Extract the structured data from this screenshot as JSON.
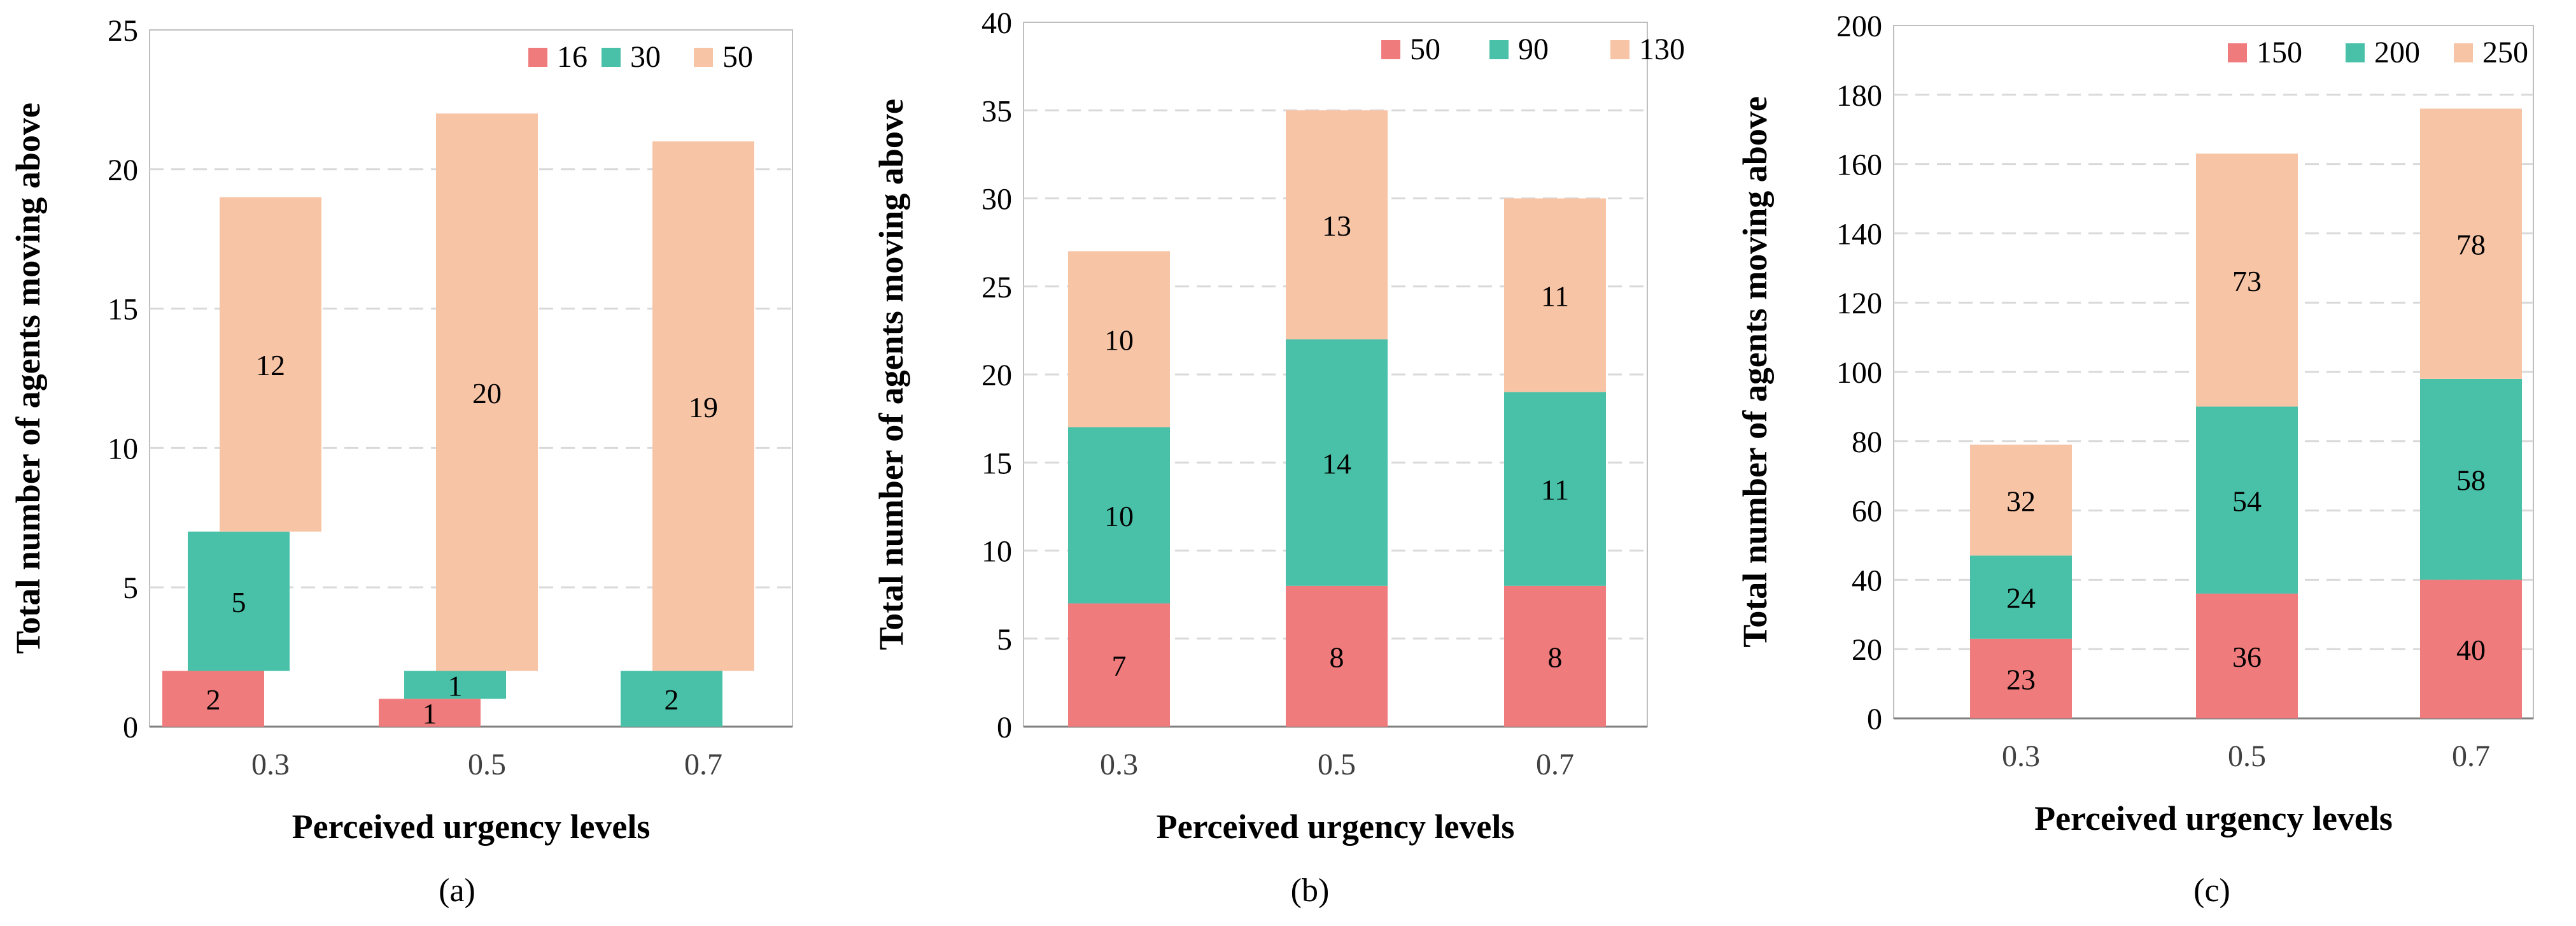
{
  "colors": {
    "red": "#f07b7c",
    "green": "#48c1a8",
    "peach": "#f7c4a6",
    "grid": "#d9d9d9",
    "axis": "#7f7f7f",
    "text": "#000000"
  },
  "chart_data": [
    {
      "type": "bar",
      "subtype": "floating-stacked",
      "panel_label": "(a)",
      "xlabel": "Perceived urgency levels",
      "ylabel": "Total number of agents moving above",
      "categories": [
        "0.3",
        "0.5",
        "0.7"
      ],
      "ylim": [
        0,
        25
      ],
      "yticks": [
        "0",
        "5",
        "10",
        "15",
        "20",
        "25"
      ],
      "legend_position": "top-right",
      "series": [
        {
          "name": "16",
          "color_key": "red",
          "bottoms": [
            0,
            0,
            0
          ],
          "values": [
            2,
            1,
            0
          ],
          "labels": [
            "2",
            "1",
            ""
          ]
        },
        {
          "name": "30",
          "color_key": "green",
          "bottoms": [
            2,
            1,
            0
          ],
          "values": [
            5,
            1,
            2
          ],
          "labels": [
            "5",
            "1",
            "2"
          ]
        },
        {
          "name": "50",
          "color_key": "peach",
          "bottoms": [
            7,
            2,
            2
          ],
          "values": [
            12,
            20,
            19
          ],
          "labels": [
            "12",
            "20",
            "19"
          ]
        }
      ]
    },
    {
      "type": "bar",
      "subtype": "floating-stacked",
      "panel_label": "(b)",
      "xlabel": "Perceived urgency levels",
      "ylabel": "Total number of agents moving above",
      "categories": [
        "0.3",
        "0.5",
        "0.7"
      ],
      "ylim": [
        0,
        40
      ],
      "yticks": [
        "0",
        "5",
        "10",
        "15",
        "20",
        "25",
        "30",
        "35",
        "40"
      ],
      "legend_position": "top-right",
      "series": [
        {
          "name": "50",
          "color_key": "red",
          "bottoms": [
            0,
            0,
            0
          ],
          "values": [
            7,
            8,
            8
          ],
          "labels": [
            "7",
            "8",
            "8"
          ]
        },
        {
          "name": "90",
          "color_key": "green",
          "bottoms": [
            7,
            8,
            8
          ],
          "values": [
            10,
            14,
            11
          ],
          "labels": [
            "10",
            "14",
            "11"
          ]
        },
        {
          "name": "130",
          "color_key": "peach",
          "bottoms": [
            17,
            22,
            19
          ],
          "values": [
            10,
            13,
            11
          ],
          "labels": [
            "10",
            "13",
            "11"
          ]
        }
      ]
    },
    {
      "type": "bar",
      "subtype": "floating-stacked",
      "panel_label": "(c)",
      "xlabel": "Perceived urgency levels",
      "ylabel": "Total number of agents moving above",
      "categories": [
        "0.3",
        "0.5",
        "0.7"
      ],
      "ylim": [
        0,
        200
      ],
      "yticks": [
        "0",
        "20",
        "40",
        "60",
        "80",
        "100",
        "120",
        "140",
        "160",
        "180",
        "200"
      ],
      "legend_position": "top-right",
      "series": [
        {
          "name": "150",
          "color_key": "red",
          "bottoms": [
            0,
            0,
            0
          ],
          "values": [
            23,
            36,
            40
          ],
          "labels": [
            "23",
            "36",
            "40"
          ]
        },
        {
          "name": "200",
          "color_key": "green",
          "bottoms": [
            23,
            36,
            40
          ],
          "values": [
            24,
            54,
            58
          ],
          "labels": [
            "24",
            "54",
            "58"
          ]
        },
        {
          "name": "250",
          "color_key": "peach",
          "bottoms": [
            47,
            90,
            98
          ],
          "values": [
            32,
            73,
            78
          ],
          "labels": [
            "32",
            "73",
            "78"
          ]
        }
      ]
    }
  ]
}
